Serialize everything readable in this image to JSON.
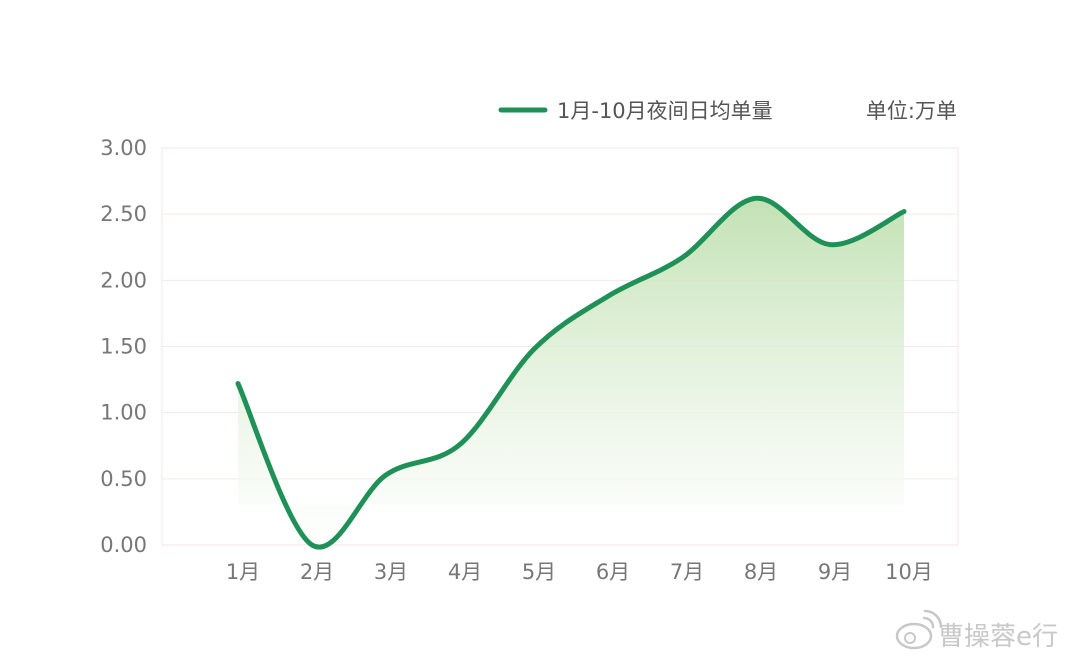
{
  "chart_data": {
    "type": "area",
    "title": "",
    "xlabel": "",
    "ylabel": "",
    "unit_label": "单位:万单",
    "categories": [
      "1月",
      "2月",
      "3月",
      "4月",
      "5月",
      "6月",
      "7月",
      "8月",
      "9月",
      "10月"
    ],
    "series": [
      {
        "name": "1月-10月夜间日均单量",
        "values": [
          1.22,
          0.0,
          0.53,
          0.76,
          1.48,
          1.88,
          2.17,
          2.62,
          2.27,
          2.52
        ],
        "color": "#1f9157"
      }
    ],
    "ylim": [
      0,
      3
    ],
    "yticks": [
      "0.00",
      "0.50",
      "1.00",
      "1.50",
      "2.00",
      "2.50",
      "3.00"
    ],
    "ytick_values": [
      0,
      0.5,
      1,
      1.5,
      2,
      2.5,
      3
    ],
    "grid": true,
    "legend_position": "top-right",
    "colors": {
      "line": "#1f9157",
      "fill_top": "#bfe0b0",
      "grid": "#f7e6e8",
      "tick_text": "#777777"
    }
  },
  "watermark": {
    "text": "曹操蓉e行",
    "icon": "weibo-icon"
  }
}
